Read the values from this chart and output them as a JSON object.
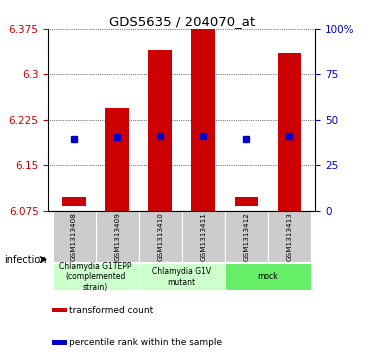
{
  "title": "GDS5635 / 204070_at",
  "samples": [
    "GSM1313408",
    "GSM1313409",
    "GSM1313410",
    "GSM1313411",
    "GSM1313412",
    "GSM1313413"
  ],
  "bar_bottoms": [
    6.082,
    6.075,
    6.075,
    6.075,
    6.082,
    6.075
  ],
  "bar_tops": [
    6.097,
    6.245,
    6.34,
    6.375,
    6.098,
    6.335
  ],
  "blue_y": [
    6.194,
    6.196,
    6.198,
    6.198,
    6.194,
    6.198
  ],
  "ylim": [
    6.075,
    6.375
  ],
  "yticks_left": [
    6.075,
    6.15,
    6.225,
    6.3,
    6.375
  ],
  "yticks_right_vals": [
    0,
    25,
    50,
    75,
    100
  ],
  "yticks_right_labels": [
    "0",
    "25",
    "50",
    "75",
    "100%"
  ],
  "bar_color": "#cc0000",
  "blue_color": "#0000cc",
  "groups": [
    {
      "label": "Chlamydia G1TEPP\n(complemented\nstrain)",
      "start": 0,
      "end": 2,
      "color": "#ccffcc"
    },
    {
      "label": "Chlamydia G1V\nmutant",
      "start": 2,
      "end": 4,
      "color": "#ccffcc"
    },
    {
      "label": "mock",
      "start": 4,
      "end": 6,
      "color": "#66ee66"
    }
  ],
  "infection_label": "infection",
  "legend_items": [
    {
      "color": "#cc0000",
      "label": "transformed count"
    },
    {
      "color": "#0000cc",
      "label": "percentile rank within the sample"
    }
  ],
  "bar_width": 0.55,
  "tick_label_color_left": "#cc0000",
  "tick_label_color_right": "#0000cc",
  "bg_color": "#ffffff"
}
